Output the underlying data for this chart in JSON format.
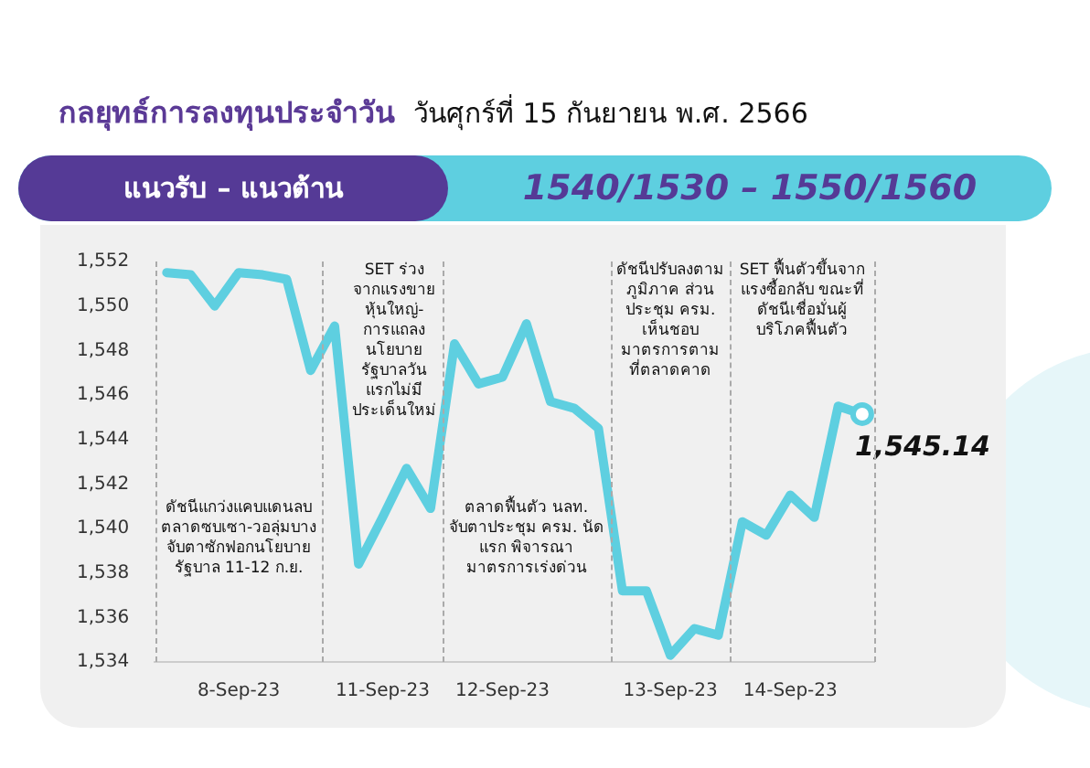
{
  "chart_data": {
    "type": "line",
    "title": "กลยุทธ์การลงทุนประจำวัน",
    "subtitle": "วันศุกร์ที่ 15 กันยายน พ.ศ. 2566",
    "categories": [
      null,
      null,
      null,
      "8-Sep-23",
      null,
      null,
      null,
      null,
      null,
      "11-Sep-23",
      null,
      null,
      null,
      null,
      "12-Sep-23",
      null,
      null,
      null,
      null,
      null,
      null,
      "13-Sep-23",
      null,
      null,
      null,
      null,
      "14-Sep-23",
      null,
      null,
      null
    ],
    "series": [
      {
        "color": "#5ecfe0",
        "values": [
          1551.5,
          1551.4,
          1550.0,
          1551.5,
          1551.4,
          1551.2,
          1547.1,
          1549.1,
          1538.4,
          1540.5,
          1542.7,
          1540.9,
          1548.3,
          1546.5,
          1546.8,
          1549.2,
          1545.7,
          1545.4,
          1544.5,
          1537.2,
          1537.2,
          1534.3,
          1535.5,
          1535.2,
          1540.3,
          1539.7,
          1541.5,
          1540.5,
          1545.5,
          1545.14
        ]
      }
    ],
    "ylim": [
      1534,
      1552
    ],
    "yticks": [
      {
        "value": 1534,
        "label": "1,534"
      },
      {
        "value": 1536,
        "label": "1,536"
      },
      {
        "value": 1538,
        "label": "1,538"
      },
      {
        "value": 1540,
        "label": "1,540"
      },
      {
        "value": 1542,
        "label": "1,542"
      },
      {
        "value": 1544,
        "label": "1,544"
      },
      {
        "value": 1546,
        "label": "1,546"
      },
      {
        "value": 1548,
        "label": "1,548"
      },
      {
        "value": 1550,
        "label": "1,550"
      },
      {
        "value": 1552,
        "label": "1,552"
      }
    ],
    "annotations": [
      "แนวรับ – แนวต้าน",
      "1540/1530 – 1550/1560",
      "ดัชนีแกว่งแคบแดนลบ ตลาดซบเซา-วอลุ่มบาง จับตาซักฟอกนโยบายรัฐบาล 11-12 ก.ย.",
      "SET ร่วงจากแรงขายหุ้นใหญ่-การแถลงนโยบายรัฐบาลวันแรกไม่มีประเด็นใหม่",
      "ตลาดฟื้นตัว นลท. จับตาประชุม ครม. นัดแรก พิจารณามาตรการเร่งด่วน",
      "ดัชนีปรับลงตามภูมิภาค ส่วนประชุม ครม. เห็นชอบมาตรการตามที่ตลาดคาด",
      "SET ฟื้นตัวขึ้นจากแรงซื้อกลับ ขณะที่ดัชนีเชื่อมั่นผู้บริโภคฟื้นตัว",
      "1,545.14"
    ],
    "grid": false,
    "legend": false,
    "marker": "none",
    "line_style": "solid"
  }
}
